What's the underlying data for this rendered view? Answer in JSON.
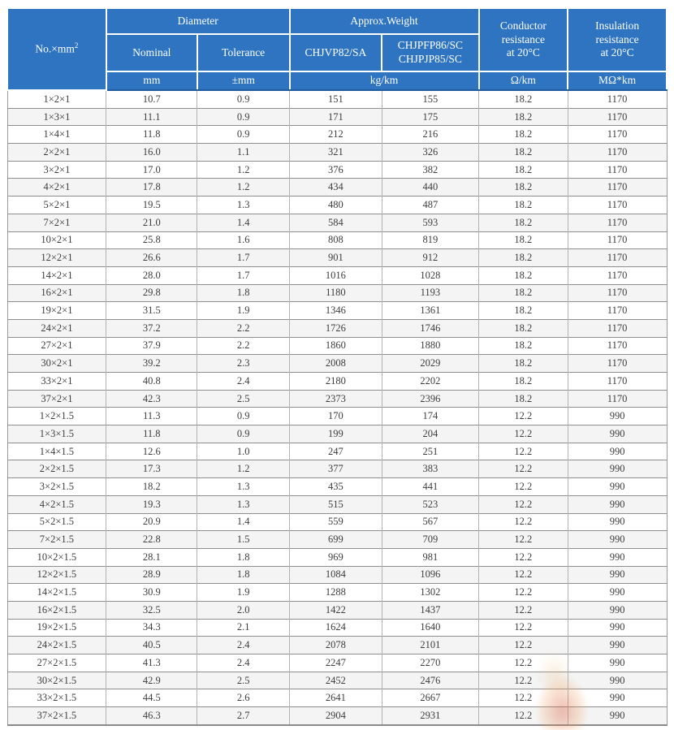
{
  "colors": {
    "header_blue": "#2e74c0",
    "header_divider_blue": "#1e5c9e",
    "row_alt_bg": "#f4f4f4",
    "grid_line": "#8e8e8e",
    "body_text": "#3d3d3d"
  },
  "table": {
    "header": {
      "no_label": "No.×mm",
      "no_sup": "2",
      "diameter": "Diameter",
      "approx_weight": "Approx.Weight",
      "nominal": "Nominal",
      "tolerance": "Tolerance",
      "model_a": "CHJVP82/SA",
      "model_b": "CHJPFP86/SC\nCHJPJP85/SC",
      "conductor": "Conductor\nresistance\nat 20°C",
      "insulation": "Insulation\nresistance\nat 20°C"
    },
    "units": {
      "diameter_nominal": "mm",
      "diameter_tolerance": "±mm",
      "weight": "kg/km",
      "conductor": "Ω/km",
      "insulation": "MΩ*km"
    },
    "columns": [
      "No.×mm2",
      "Nominal diameter",
      "Tolerance",
      "CHJVP82/SA weight",
      "CHJPFP86/SC CHJPJP85/SC weight",
      "Conductor resistance",
      "Insulation resistance"
    ],
    "rows": [
      [
        "1×2×1",
        "10.7",
        "0.9",
        "151",
        "155",
        "18.2",
        "1170"
      ],
      [
        "1×3×1",
        "11.1",
        "0.9",
        "171",
        "175",
        "18.2",
        "1170"
      ],
      [
        "1×4×1",
        "11.8",
        "0.9",
        "212",
        "216",
        "18.2",
        "1170"
      ],
      [
        "2×2×1",
        "16.0",
        "1.1",
        "321",
        "326",
        "18.2",
        "1170"
      ],
      [
        "3×2×1",
        "17.0",
        "1.2",
        "376",
        "382",
        "18.2",
        "1170"
      ],
      [
        "4×2×1",
        "17.8",
        "1.2",
        "434",
        "440",
        "18.2",
        "1170"
      ],
      [
        "5×2×1",
        "19.5",
        "1.3",
        "480",
        "487",
        "18.2",
        "1170"
      ],
      [
        "7×2×1",
        "21.0",
        "1.4",
        "584",
        "593",
        "18.2",
        "1170"
      ],
      [
        "10×2×1",
        "25.8",
        "1.6",
        "808",
        "819",
        "18.2",
        "1170"
      ],
      [
        "12×2×1",
        "26.6",
        "1.7",
        "901",
        "912",
        "18.2",
        "1170"
      ],
      [
        "14×2×1",
        "28.0",
        "1.7",
        "1016",
        "1028",
        "18.2",
        "1170"
      ],
      [
        "16×2×1",
        "29.8",
        "1.8",
        "1180",
        "1193",
        "18.2",
        "1170"
      ],
      [
        "19×2×1",
        "31.5",
        "1.9",
        "1346",
        "1361",
        "18.2",
        "1170"
      ],
      [
        "24×2×1",
        "37.2",
        "2.2",
        "1726",
        "1746",
        "18.2",
        "1170"
      ],
      [
        "27×2×1",
        "37.9",
        "2.2",
        "1860",
        "1880",
        "18.2",
        "1170"
      ],
      [
        "30×2×1",
        "39.2",
        "2.3",
        "2008",
        "2029",
        "18.2",
        "1170"
      ],
      [
        "33×2×1",
        "40.8",
        "2.4",
        "2180",
        "2202",
        "18.2",
        "1170"
      ],
      [
        "37×2×1",
        "42.3",
        "2.5",
        "2373",
        "2396",
        "18.2",
        "1170"
      ],
      [
        "1×2×1.5",
        "11.3",
        "0.9",
        "170",
        "174",
        "12.2",
        "990"
      ],
      [
        "1×3×1.5",
        "11.8",
        "0.9",
        "199",
        "204",
        "12.2",
        "990"
      ],
      [
        "1×4×1.5",
        "12.6",
        "1.0",
        "247",
        "251",
        "12.2",
        "990"
      ],
      [
        "2×2×1.5",
        "17.3",
        "1.2",
        "377",
        "383",
        "12.2",
        "990"
      ],
      [
        "3×2×1.5",
        "18.2",
        "1.3",
        "435",
        "441",
        "12.2",
        "990"
      ],
      [
        "4×2×1.5",
        "19.3",
        "1.3",
        "515",
        "523",
        "12.2",
        "990"
      ],
      [
        "5×2×1.5",
        "20.9",
        "1.4",
        "559",
        "567",
        "12.2",
        "990"
      ],
      [
        "7×2×1.5",
        "22.8",
        "1.5",
        "699",
        "709",
        "12.2",
        "990"
      ],
      [
        "10×2×1.5",
        "28.1",
        "1.8",
        "969",
        "981",
        "12.2",
        "990"
      ],
      [
        "12×2×1.5",
        "28.9",
        "1.8",
        "1084",
        "1096",
        "12.2",
        "990"
      ],
      [
        "14×2×1.5",
        "30.9",
        "1.9",
        "1288",
        "1302",
        "12.2",
        "990"
      ],
      [
        "16×2×1.5",
        "32.5",
        "2.0",
        "1422",
        "1437",
        "12.2",
        "990"
      ],
      [
        "19×2×1.5",
        "34.3",
        "2.1",
        "1624",
        "1640",
        "12.2",
        "990"
      ],
      [
        "24×2×1.5",
        "40.5",
        "2.4",
        "2078",
        "2101",
        "12.2",
        "990"
      ],
      [
        "27×2×1.5",
        "41.3",
        "2.4",
        "2247",
        "2270",
        "12.2",
        "990"
      ],
      [
        "30×2×1.5",
        "42.9",
        "2.5",
        "2452",
        "2476",
        "12.2",
        "990"
      ],
      [
        "33×2×1.5",
        "44.5",
        "2.6",
        "2641",
        "2667",
        "12.2",
        "990"
      ],
      [
        "37×2×1.5",
        "46.3",
        "2.7",
        "2904",
        "2931",
        "12.2",
        "990"
      ]
    ]
  }
}
